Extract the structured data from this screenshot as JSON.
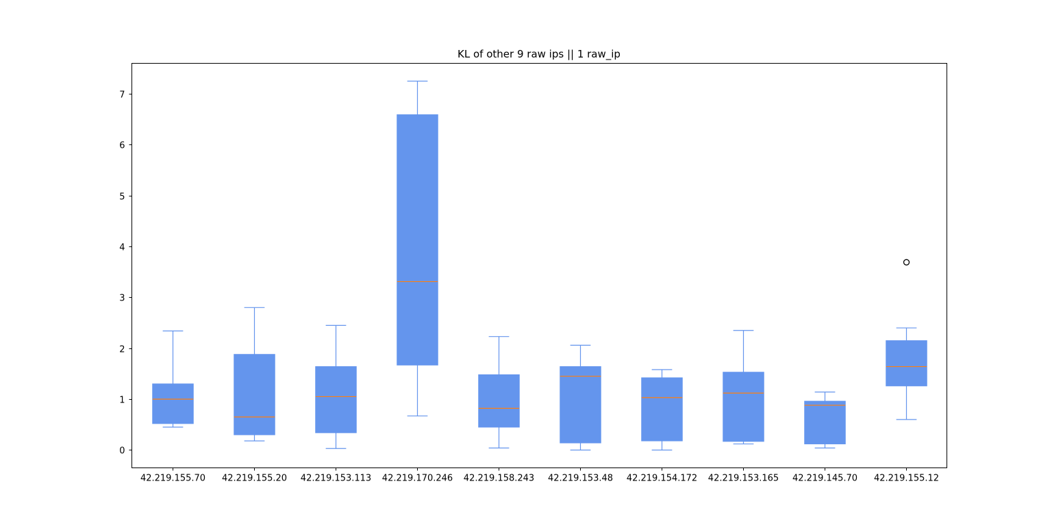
{
  "chart_data": {
    "type": "boxplot",
    "title": "KL of other 9 raw ips || 1 raw_ip",
    "xlabel": "",
    "ylabel": "",
    "ylim": [
      -0.35,
      7.6
    ],
    "yticks": [
      0,
      1,
      2,
      3,
      4,
      5,
      6,
      7
    ],
    "grid": false,
    "box_color": "#6495ED",
    "median_color": "#FF7F0E",
    "outlier_color": "#000000",
    "categories": [
      "42.219.155.70",
      "42.219.155.20",
      "42.219.153.113",
      "42.219.170.246",
      "42.219.158.243",
      "42.219.153.48",
      "42.219.154.172",
      "42.219.153.165",
      "42.219.145.70",
      "42.219.155.12"
    ],
    "boxes": [
      {
        "whisker_low": 0.45,
        "q1": 0.52,
        "median": 1.0,
        "q3": 1.3,
        "whisker_high": 2.34,
        "outliers": []
      },
      {
        "whisker_low": 0.18,
        "q1": 0.3,
        "median": 0.65,
        "q3": 1.88,
        "whisker_high": 2.8,
        "outliers": []
      },
      {
        "whisker_low": 0.03,
        "q1": 0.34,
        "median": 1.05,
        "q3": 1.64,
        "whisker_high": 2.45,
        "outliers": []
      },
      {
        "whisker_low": 0.67,
        "q1": 1.67,
        "median": 3.31,
        "q3": 6.59,
        "whisker_high": 7.25,
        "outliers": []
      },
      {
        "whisker_low": 0.04,
        "q1": 0.45,
        "median": 0.82,
        "q3": 1.48,
        "whisker_high": 2.23,
        "outliers": []
      },
      {
        "whisker_low": 0.0,
        "q1": 0.14,
        "median": 1.45,
        "q3": 1.64,
        "whisker_high": 2.06,
        "outliers": []
      },
      {
        "whisker_low": 0.0,
        "q1": 0.18,
        "median": 1.03,
        "q3": 1.42,
        "whisker_high": 1.58,
        "outliers": []
      },
      {
        "whisker_low": 0.12,
        "q1": 0.17,
        "median": 1.12,
        "q3": 1.53,
        "whisker_high": 2.35,
        "outliers": []
      },
      {
        "whisker_low": 0.04,
        "q1": 0.12,
        "median": 0.88,
        "q3": 0.96,
        "whisker_high": 1.14,
        "outliers": []
      },
      {
        "whisker_low": 0.6,
        "q1": 1.26,
        "median": 1.64,
        "q3": 2.15,
        "whisker_high": 2.4,
        "outliers": [
          3.69
        ]
      }
    ]
  }
}
